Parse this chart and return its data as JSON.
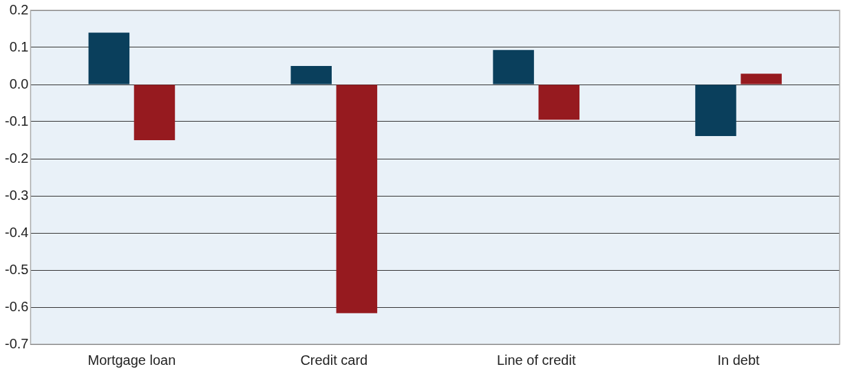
{
  "chart_data": {
    "type": "bar",
    "categories": [
      "Mortgage loan",
      "Credit card",
      "Line of credit",
      "In debt"
    ],
    "series": [
      {
        "color": "#0a3f5c",
        "values": [
          0.14,
          0.05,
          0.093,
          -0.139
        ]
      },
      {
        "color": "#961a1f",
        "values": [
          -0.15,
          -0.616,
          -0.095,
          0.029
        ]
      }
    ],
    "ylim": [
      -0.7,
      0.2
    ],
    "yticks": [
      {
        "value": 0.2,
        "label": "0.2"
      },
      {
        "value": 0.1,
        "label": "0.1"
      },
      {
        "value": 0,
        "label": "0.0"
      },
      {
        "value": -0.1,
        "label": "-0.1"
      },
      {
        "value": -0.2,
        "label": "-0.2"
      },
      {
        "value": -0.3,
        "label": "-0.3"
      },
      {
        "value": -0.4,
        "label": "-0.4"
      },
      {
        "value": -0.5,
        "label": "-0.5"
      },
      {
        "value": -0.6,
        "label": "-0.6"
      },
      {
        "value": -0.7,
        "label": "-0.7"
      }
    ],
    "grid": "y",
    "legend": false
  }
}
